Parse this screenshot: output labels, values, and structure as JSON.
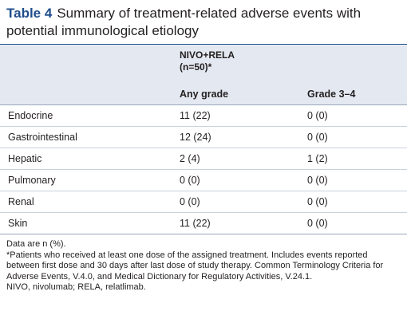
{
  "header": {
    "label": "Table 4",
    "title": "Summary of treatment-related adverse events with potential immunological etiology"
  },
  "table": {
    "group_header": "NIVO+RELA (n=50)*",
    "columns": [
      "Any grade",
      "Grade 3–4"
    ],
    "rows": [
      [
        "Endocrine",
        "11 (22)",
        "0 (0)"
      ],
      [
        "Gastrointestinal",
        "12 (24)",
        "0 (0)"
      ],
      [
        "Hepatic",
        "2 (4)",
        "1 (2)"
      ],
      [
        "Pulmonary",
        "0 (0)",
        "0 (0)"
      ],
      [
        "Renal",
        "0 (0)",
        "0 (0)"
      ],
      [
        "Skin",
        "11 (22)",
        "0 (0)"
      ]
    ]
  },
  "notes": [
    "Data are n (%).",
    "*Patients who received at least one dose of the assigned treatment. Includes events reported between first dose and 30 days after last dose of study therapy. Common Terminology Criteria for Adverse Events, V.4.0, and Medical Dictionary for Regulatory Activities, V.24.1.",
    "NIVO, nivolumab; RELA, relatlimab."
  ]
}
